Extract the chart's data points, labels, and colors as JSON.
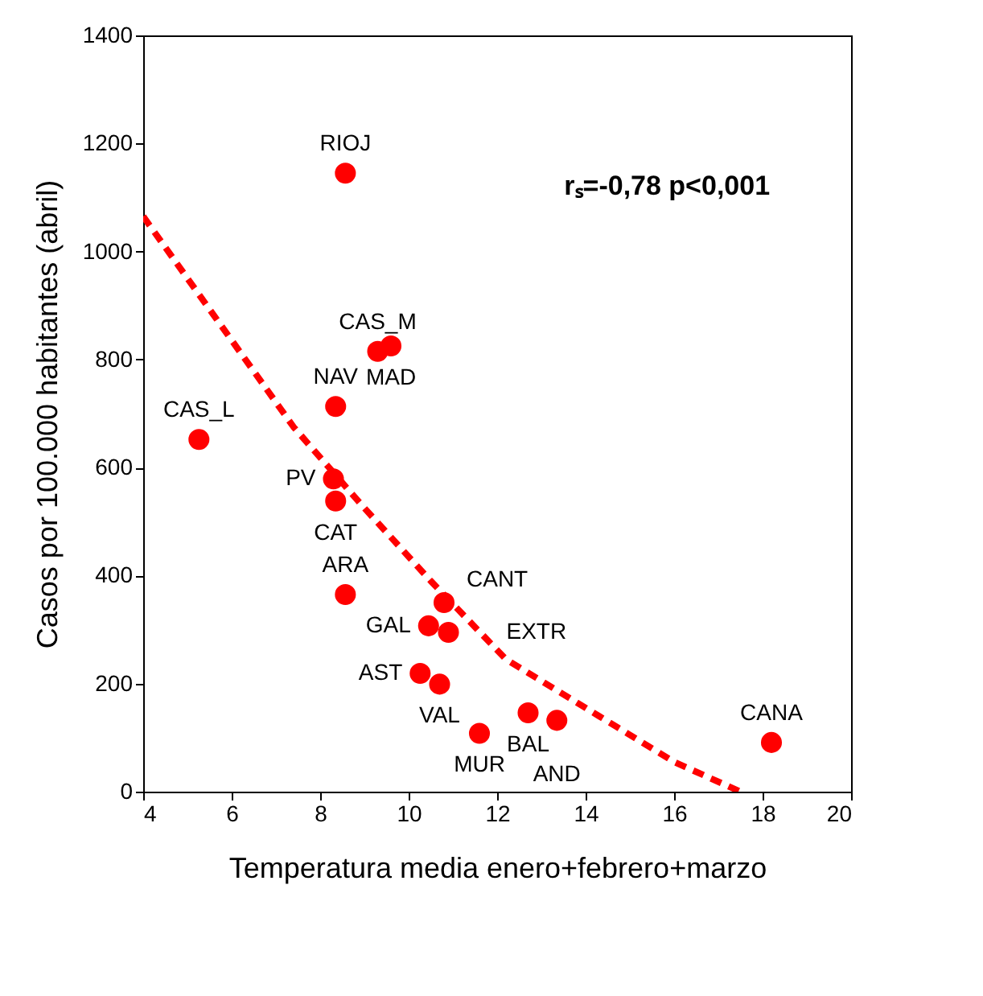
{
  "chart_data": {
    "type": "scatter",
    "xlabel": "Temperatura media enero+febrero+marzo",
    "ylabel": "Casos por 100.000 habitantes (abril)",
    "xlim": [
      4,
      20
    ],
    "xticks": [
      4,
      6,
      8,
      10,
      12,
      14,
      16,
      18,
      20
    ],
    "ylim": [
      0,
      1400
    ],
    "yticks": [
      0,
      200,
      400,
      600,
      800,
      1000,
      1200,
      1400
    ],
    "grid": false,
    "legend": false,
    "marker": "circle",
    "series": [
      {
        "color": "#ff0000",
        "x": [
          8.57,
          9.3,
          9.6,
          8.35,
          5.26,
          8.3,
          8.35,
          8.57,
          10.8,
          10.45,
          10.9,
          10.26,
          10.7,
          11.6,
          12.7,
          13.35,
          18.2
        ],
        "values": [
          1145,
          815,
          825,
          713,
          652,
          579,
          538,
          365,
          350,
          307,
          295,
          219,
          199,
          108,
          146,
          132,
          91
        ]
      },
      {
        "type": "line",
        "color": "#ff0000",
        "line_style": "dashed",
        "marker": "none",
        "x": [
          4,
          7.4,
          9,
          10.5,
          12.2,
          14.3,
          16,
          17.5
        ],
        "values": [
          1065,
          675,
          525,
          390,
          245,
          140,
          55,
          0
        ]
      }
    ],
    "annotations": [
      {
        "text": "RIOJ",
        "x": 8.57,
        "y": 1145
      },
      {
        "text": "CAS_M",
        "x": 9.3,
        "y": 815
      },
      {
        "text": "MAD",
        "x": 9.6,
        "y": 825
      },
      {
        "text": "NAV",
        "x": 8.35,
        "y": 713
      },
      {
        "text": "CAS_L",
        "x": 5.26,
        "y": 652
      },
      {
        "text": "PV",
        "x": 8.3,
        "y": 579
      },
      {
        "text": "CAT",
        "x": 8.35,
        "y": 538
      },
      {
        "text": "ARA",
        "x": 8.57,
        "y": 365
      },
      {
        "text": "CANT",
        "x": 10.8,
        "y": 350
      },
      {
        "text": "GAL",
        "x": 10.45,
        "y": 307
      },
      {
        "text": "EXTR",
        "x": 10.9,
        "y": 295
      },
      {
        "text": "AST",
        "x": 10.26,
        "y": 219
      },
      {
        "text": "VAL",
        "x": 10.7,
        "y": 199
      },
      {
        "text": "MUR",
        "x": 11.6,
        "y": 108
      },
      {
        "text": "BAL",
        "x": 12.7,
        "y": 146
      },
      {
        "text": "AND",
        "x": 13.35,
        "y": 132
      },
      {
        "text": "CANA",
        "x": 18.2,
        "y": 91
      },
      "rₛ=-0,78 p<0,001"
    ]
  }
}
